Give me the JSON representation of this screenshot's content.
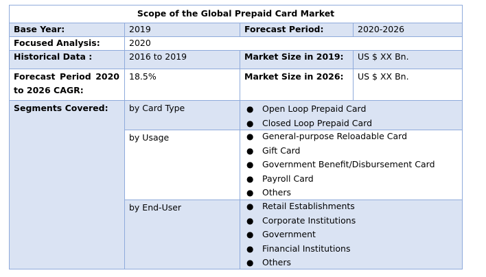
{
  "title": "Scope of the Global Prepaid Card Market",
  "rows": {
    "base_year_label": "Base Year:",
    "base_year_value": "2019",
    "forecast_period_label": "Forecast Period:",
    "forecast_period_value": "2020-2026",
    "focused_label": "Focused Analysis:",
    "focused_value": "2020",
    "historical_label": "Historical Data :",
    "historical_value": "2016 to 2019",
    "market_2019_label": "Market Size in 2019:",
    "market_2019_value": "US $ XX Bn.",
    "cagr_label": "Forecast Period 2020 to 2026 CAGR:",
    "cagr_value": "18.5%",
    "market_2026_label": "Market Size in 2026:",
    "market_2026_value": "US $ XX Bn.",
    "segments_label": "Segments Covered:"
  },
  "segments": [
    {
      "name": "by Card Type",
      "items": [
        "Open Loop Prepaid Card",
        "Closed Loop Prepaid Card"
      ]
    },
    {
      "name": "by Usage",
      "items": [
        "General-purpose Reloadable Card",
        "Gift Card",
        "Government Benefit/Disbursement Card",
        "Payroll Card",
        "Others"
      ]
    },
    {
      "name": "by End-User",
      "items": [
        "Retail Establishments",
        "Corporate Institutions",
        "Government",
        "Financial Institutions",
        "Others"
      ]
    }
  ],
  "colors": {
    "header_fill": "#dae3f3",
    "border": "#8eaadb"
  }
}
